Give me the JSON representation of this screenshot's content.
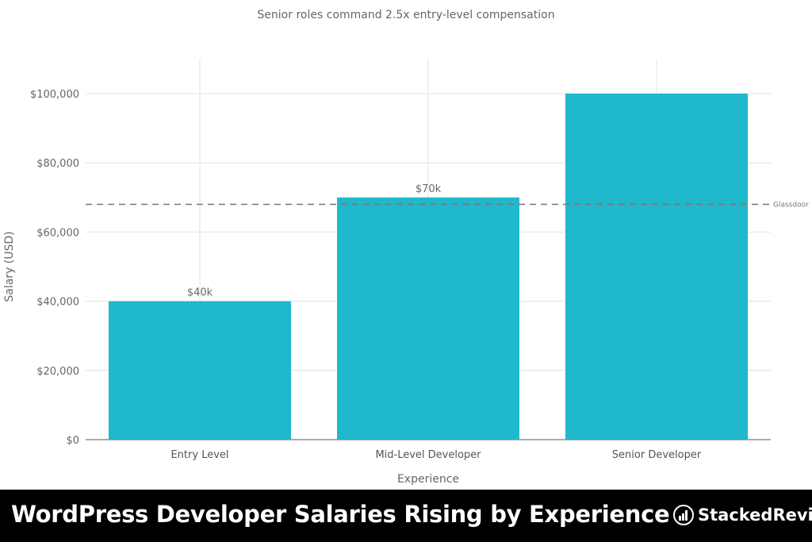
{
  "chart_data": {
    "type": "bar",
    "title": "Senior roles command 2.5x entry-level compensation",
    "xlabel": "Experience",
    "ylabel": "Salary (USD)",
    "categories": [
      "Entry Level",
      "Mid-Level Developer",
      "Senior Developer"
    ],
    "values": [
      40000,
      70000,
      100000
    ],
    "data_labels": [
      "$40k",
      "$70k",
      ""
    ],
    "ylim": [
      0,
      110000
    ],
    "yticks": [
      0,
      20000,
      40000,
      60000,
      80000,
      100000
    ],
    "ytick_labels": [
      "$0",
      "$20,000",
      "$40,000",
      "$60,000",
      "$80,000",
      "$100,000"
    ],
    "reference_line": {
      "value": 68000,
      "label": "Glassdoor",
      "style": "dashed"
    },
    "grid": true,
    "bar_color": "#1fb8cd"
  },
  "footer": {
    "title": "WordPress Developer Salaries Rising by Experience",
    "brand": "StackedReview"
  }
}
